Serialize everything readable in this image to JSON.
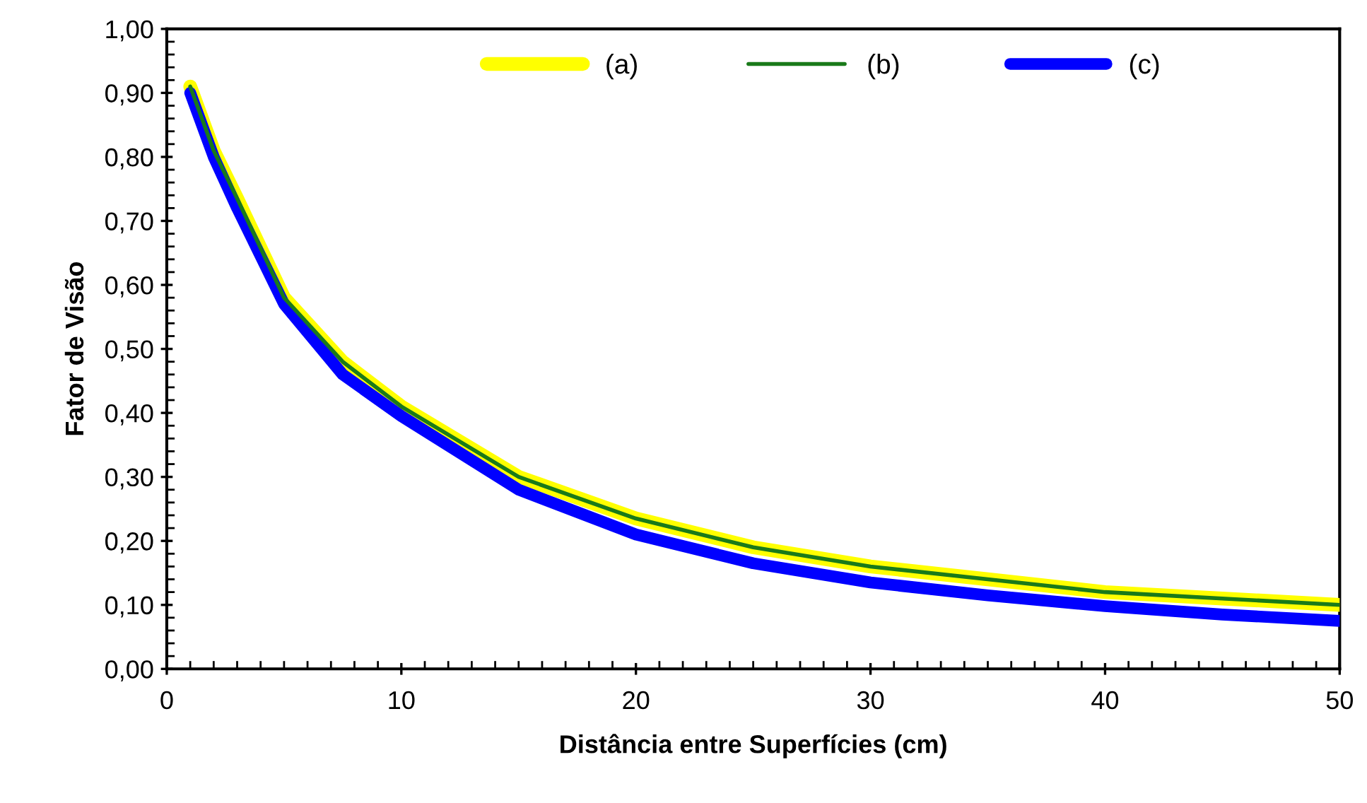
{
  "chart_data": {
    "type": "line",
    "xlabel": "Distância entre Superfícies (cm)",
    "ylabel": "Fator de Visão",
    "x": [
      1,
      2,
      3,
      5,
      7.5,
      10,
      15,
      20,
      25,
      30,
      35,
      40,
      45,
      50
    ],
    "series": [
      {
        "name": "(a)",
        "color": "#ffff00",
        "values": [
          0.91,
          0.81,
          0.735,
          0.58,
          0.48,
          0.41,
          0.3,
          0.235,
          0.19,
          0.16,
          0.14,
          0.12,
          0.11,
          0.1
        ]
      },
      {
        "name": "(b)",
        "color": "#1a7a1a",
        "values": [
          0.91,
          0.81,
          0.735,
          0.58,
          0.48,
          0.41,
          0.3,
          0.235,
          0.19,
          0.16,
          0.14,
          0.12,
          0.11,
          0.1
        ]
      },
      {
        "name": "(c)",
        "color": "#0000ff",
        "values": [
          0.9,
          0.8,
          0.72,
          0.57,
          0.46,
          0.395,
          0.28,
          0.21,
          0.165,
          0.135,
          0.115,
          0.098,
          0.085,
          0.075
        ]
      }
    ],
    "xlim": [
      0,
      50
    ],
    "xticks": [
      0,
      10,
      20,
      30,
      40,
      50
    ],
    "ylim": [
      0,
      1
    ],
    "yticks": [
      {
        "value": 0,
        "label": "0,00"
      },
      {
        "value": 0.1,
        "label": "0,10"
      },
      {
        "value": 0.2,
        "label": "0,20"
      },
      {
        "value": 0.3,
        "label": "0,30"
      },
      {
        "value": 0.4,
        "label": "0,40"
      },
      {
        "value": 0.5,
        "label": "0,50"
      },
      {
        "value": 0.6,
        "label": "0,60"
      },
      {
        "value": 0.7,
        "label": "0,70"
      },
      {
        "value": 0.8,
        "label": "0,80"
      },
      {
        "value": 0.9,
        "label": "0,90"
      },
      {
        "value": 1,
        "label": "1,00"
      }
    ],
    "grid": false,
    "legend": "top",
    "marker": "none",
    "line_style": "solid"
  }
}
